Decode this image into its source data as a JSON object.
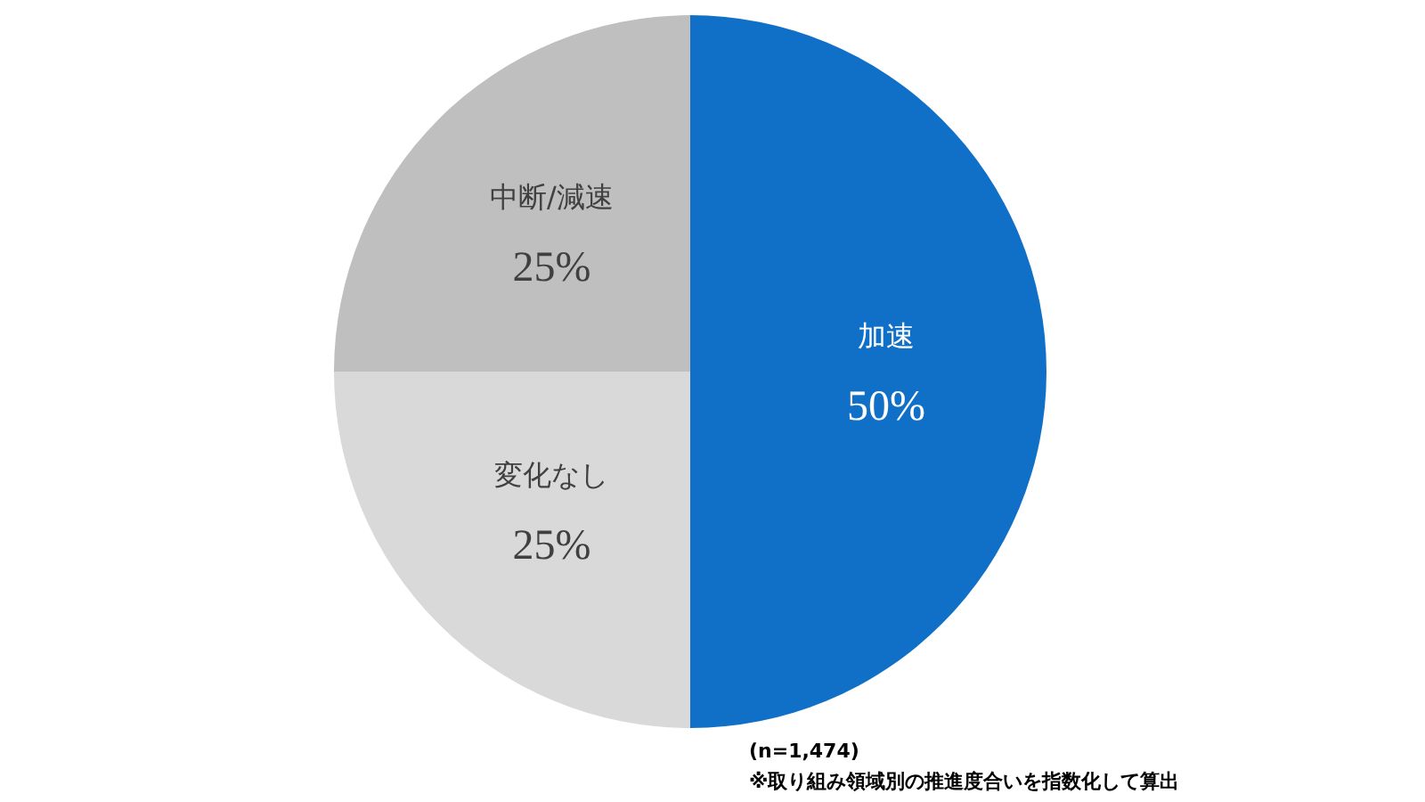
{
  "chart_data": {
    "type": "pie",
    "categories": [
      "加速",
      "変化なし",
      "中断/減速"
    ],
    "values": [
      50,
      25,
      25
    ],
    "colors": [
      "#1070c8",
      "#d9d9d9",
      "#bfbfbf"
    ],
    "value_labels": [
      "50%",
      "25%",
      "25%"
    ],
    "annotations": [
      "(n=1,474)",
      "※取り組み領域別の推進度合いを指数化して算出"
    ]
  }
}
